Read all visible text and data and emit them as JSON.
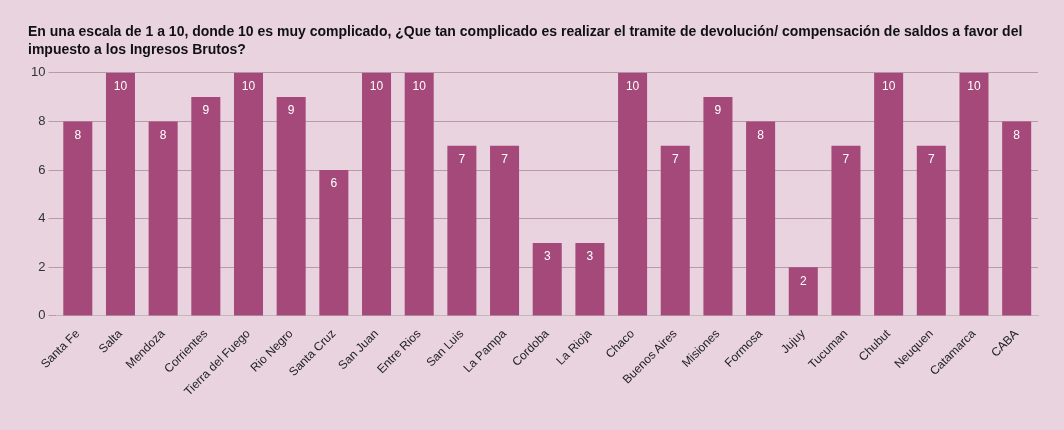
{
  "chart_data": {
    "type": "bar",
    "title": "En una escala de 1 a 10, donde 10 es muy complicado, ¿Que tan complicado es realizar el tramite de devolución/ compensación de saldos a favor del impuesto a los Ingresos Brutos?",
    "categories": [
      "Santa Fe",
      "Salta",
      "Mendoza",
      "Corrientes",
      "Tierra del Fuego",
      "Rio Negro",
      "Santa Cruz",
      "San Juan",
      "Entre Rios",
      "San Luis",
      "La Pampa",
      "Cordoba",
      "La Rioja",
      "Chaco",
      "Buenos Aires",
      "Misiones",
      "Formosa",
      "Jujuy",
      "Tucuman",
      "Chubut",
      "Neuquen",
      "Catamarca",
      "CABA"
    ],
    "values": [
      8,
      10,
      8,
      9,
      10,
      9,
      6,
      10,
      10,
      7,
      7,
      3,
      3,
      10,
      7,
      9,
      8,
      2,
      7,
      10,
      7,
      10,
      8
    ],
    "color": "#a4497a",
    "ylim": [
      0,
      10
    ],
    "yticks": [
      0,
      2,
      4,
      6,
      8,
      10
    ],
    "grid": "y",
    "data_labels": true,
    "legend": false
  }
}
